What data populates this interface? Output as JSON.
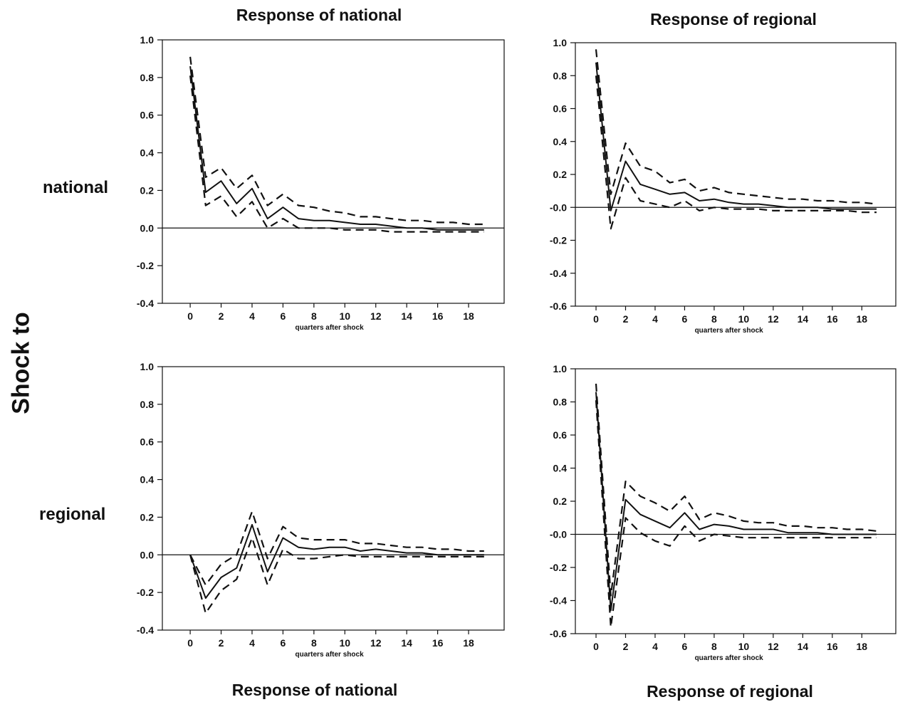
{
  "column_titles": {
    "top_left": "Response of  national",
    "top_right": "Response of  regional",
    "bottom_left": "Response of  national",
    "bottom_right": "Response of  regional"
  },
  "row_labels": {
    "national": "national",
    "regional": "regional"
  },
  "side_label": "Shock to",
  "chart_data": [
    {
      "type": "line",
      "title": "Response of  national",
      "row": "national",
      "xlabel": "quarters after shock",
      "x": [
        0,
        1,
        2,
        3,
        4,
        5,
        6,
        7,
        8,
        9,
        10,
        11,
        12,
        13,
        14,
        15,
        16,
        17,
        18,
        19
      ],
      "xticks": [
        0,
        2,
        4,
        6,
        8,
        10,
        12,
        14,
        16,
        18
      ],
      "yticks": [
        "1.0",
        "0.8",
        "0.6",
        "0.4",
        "0.2",
        "0.0",
        "-0.2",
        "-0.4"
      ],
      "ylim": [
        -0.4,
        1.0
      ],
      "xlim": [
        -1.8,
        20.3
      ],
      "series": [
        {
          "style": "solid",
          "values": [
            0.86,
            0.19,
            0.25,
            0.13,
            0.21,
            0.05,
            0.11,
            0.05,
            0.04,
            0.04,
            0.03,
            0.02,
            0.02,
            0.01,
            0.0,
            0.0,
            -0.01,
            -0.01,
            -0.01,
            -0.01
          ]
        },
        {
          "style": "dashed",
          "values": [
            0.91,
            0.27,
            0.32,
            0.21,
            0.28,
            0.12,
            0.18,
            0.12,
            0.11,
            0.09,
            0.08,
            0.06,
            0.06,
            0.05,
            0.04,
            0.04,
            0.03,
            0.03,
            0.02,
            0.02
          ]
        },
        {
          "style": "dashed",
          "values": [
            0.81,
            0.12,
            0.17,
            0.06,
            0.14,
            0.0,
            0.05,
            0.0,
            0.0,
            0.0,
            -0.01,
            -0.01,
            -0.01,
            -0.02,
            -0.02,
            -0.02,
            -0.02,
            -0.02,
            -0.02,
            -0.02
          ]
        }
      ]
    },
    {
      "type": "line",
      "title": "Response of  regional",
      "row": "national",
      "xlabel": "quarters after shock",
      "x": [
        0,
        1,
        2,
        3,
        4,
        5,
        6,
        7,
        8,
        9,
        10,
        11,
        12,
        13,
        14,
        15,
        16,
        17,
        18,
        19
      ],
      "xticks": [
        0,
        2,
        4,
        6,
        8,
        10,
        12,
        14,
        16,
        18
      ],
      "yticks": [
        "1.0",
        "0.8",
        "0.6",
        "0.4",
        "0.2",
        "-0.0",
        "-0.2",
        "-0.4",
        "-0.6"
      ],
      "ylim": [
        -0.6,
        1.0
      ],
      "xlim": [
        -1.4,
        20.3
      ],
      "series": [
        {
          "style": "solid",
          "values": [
            0.88,
            -0.02,
            0.28,
            0.14,
            0.11,
            0.08,
            0.09,
            0.04,
            0.05,
            0.03,
            0.02,
            0.02,
            0.01,
            0.0,
            0.0,
            0.0,
            -0.01,
            -0.01,
            -0.01,
            -0.01
          ]
        },
        {
          "style": "dashed",
          "values": [
            0.96,
            0.08,
            0.39,
            0.25,
            0.22,
            0.15,
            0.17,
            0.1,
            0.12,
            0.09,
            0.08,
            0.07,
            0.06,
            0.05,
            0.05,
            0.04,
            0.04,
            0.03,
            0.03,
            0.02
          ]
        },
        {
          "style": "dashed",
          "values": [
            0.8,
            -0.13,
            0.18,
            0.04,
            0.02,
            0.0,
            0.04,
            -0.02,
            0.0,
            -0.01,
            -0.01,
            -0.01,
            -0.02,
            -0.02,
            -0.02,
            -0.02,
            -0.02,
            -0.02,
            -0.03,
            -0.03
          ]
        }
      ]
    },
    {
      "type": "line",
      "title": "Response of  national",
      "row": "regional",
      "xlabel": "quarters after shock",
      "x": [
        0,
        1,
        2,
        3,
        4,
        5,
        6,
        7,
        8,
        9,
        10,
        11,
        12,
        13,
        14,
        15,
        16,
        17,
        18,
        19
      ],
      "xticks": [
        0,
        2,
        4,
        6,
        8,
        10,
        12,
        14,
        16,
        18
      ],
      "yticks": [
        "1.0",
        "0.8",
        "0.6",
        "0.4",
        "0.2",
        "0.0",
        "-0.2",
        "-0.4"
      ],
      "ylim": [
        -0.4,
        1.0
      ],
      "xlim": [
        -1.8,
        20.3
      ],
      "series": [
        {
          "style": "solid",
          "values": [
            0.0,
            -0.23,
            -0.12,
            -0.07,
            0.16,
            -0.09,
            0.09,
            0.04,
            0.03,
            0.04,
            0.04,
            0.02,
            0.03,
            0.02,
            0.01,
            0.01,
            0.0,
            0.0,
            0.0,
            0.0
          ]
        },
        {
          "style": "dashed",
          "values": [
            0.0,
            -0.16,
            -0.05,
            0.0,
            0.23,
            -0.02,
            0.15,
            0.09,
            0.08,
            0.08,
            0.08,
            0.06,
            0.06,
            0.05,
            0.04,
            0.04,
            0.03,
            0.03,
            0.02,
            0.02
          ]
        },
        {
          "style": "dashed",
          "values": [
            0.0,
            -0.31,
            -0.19,
            -0.13,
            0.09,
            -0.16,
            0.03,
            -0.02,
            -0.02,
            -0.01,
            0.0,
            -0.01,
            -0.01,
            -0.01,
            -0.01,
            -0.01,
            -0.01,
            -0.01,
            -0.01,
            -0.01
          ]
        }
      ]
    },
    {
      "type": "line",
      "title": "Response of  regional",
      "row": "regional",
      "xlabel": "quarters after shock",
      "x": [
        0,
        1,
        2,
        3,
        4,
        5,
        6,
        7,
        8,
        9,
        10,
        11,
        12,
        13,
        14,
        15,
        16,
        17,
        18,
        19
      ],
      "xticks": [
        0,
        2,
        4,
        6,
        8,
        10,
        12,
        14,
        16,
        18
      ],
      "yticks": [
        "1.0",
        "0.8",
        "0.6",
        "0.4",
        "0.2",
        "-0.0",
        "-0.2",
        "-0.4",
        "-0.6"
      ],
      "ylim": [
        -0.6,
        1.0
      ],
      "xlim": [
        -1.4,
        20.3
      ],
      "series": [
        {
          "style": "solid",
          "values": [
            0.86,
            -0.46,
            0.21,
            0.12,
            0.08,
            0.04,
            0.13,
            0.03,
            0.06,
            0.05,
            0.03,
            0.03,
            0.03,
            0.01,
            0.01,
            0.01,
            0.0,
            0.0,
            0.0,
            0.0
          ]
        },
        {
          "style": "dashed",
          "values": [
            0.91,
            -0.37,
            0.32,
            0.23,
            0.19,
            0.14,
            0.23,
            0.09,
            0.13,
            0.11,
            0.08,
            0.07,
            0.07,
            0.05,
            0.05,
            0.04,
            0.04,
            0.03,
            0.03,
            0.02
          ]
        },
        {
          "style": "dashed",
          "values": [
            0.81,
            -0.56,
            0.1,
            0.01,
            -0.04,
            -0.07,
            0.05,
            -0.04,
            0.0,
            -0.01,
            -0.02,
            -0.02,
            -0.02,
            -0.02,
            -0.02,
            -0.02,
            -0.02,
            -0.02,
            -0.02,
            -0.02
          ]
        }
      ]
    }
  ]
}
